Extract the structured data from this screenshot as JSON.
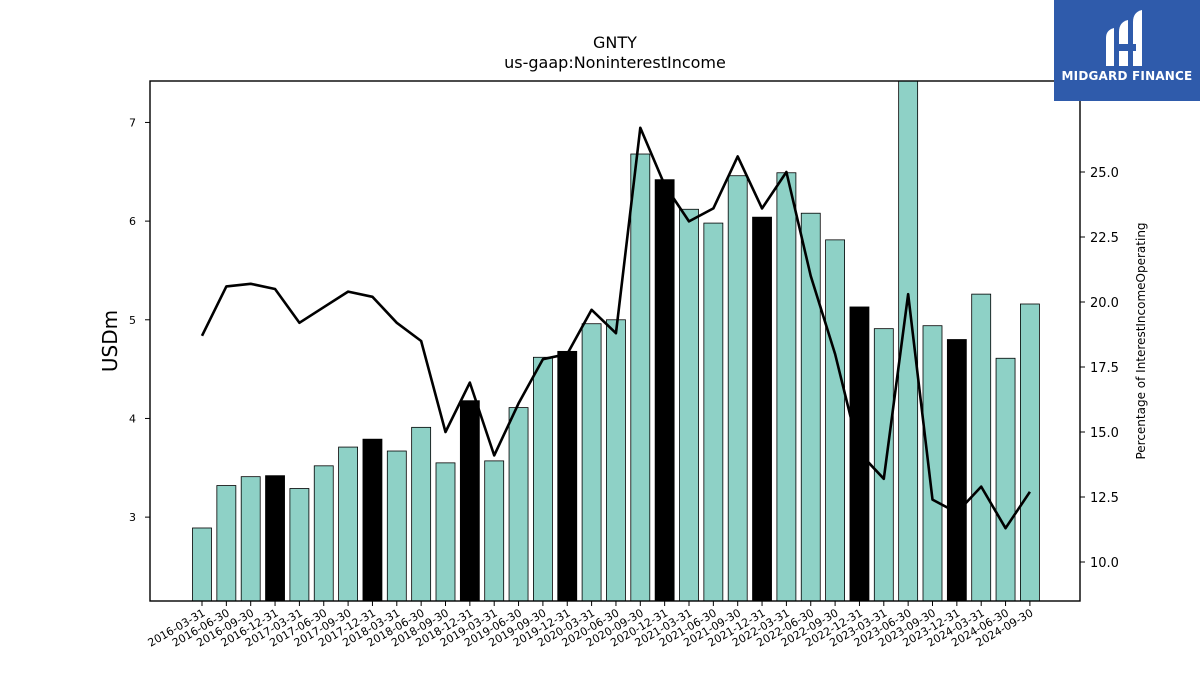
{
  "title": "GNTY",
  "subtitle": "us-gaap:NoninterestIncome",
  "logo": {
    "text": "MIDGARD FINANCE",
    "icon": "midgard-logo-icon",
    "background": "#2f5bab"
  },
  "chart_data": {
    "type": "bar",
    "categories": [
      "2016-03-31",
      "2016-06-30",
      "2016-09-30",
      "2016-12-31",
      "2017-03-31",
      "2017-06-30",
      "2017-09-30",
      "2017-12-31",
      "2018-03-31",
      "2018-06-30",
      "2018-09-30",
      "2018-12-31",
      "2019-03-31",
      "2019-06-30",
      "2019-09-30",
      "2019-12-31",
      "2020-03-31",
      "2020-06-30",
      "2020-09-30",
      "2020-12-31",
      "2021-03-31",
      "2021-06-30",
      "2021-09-30",
      "2021-12-31",
      "2022-03-31",
      "2022-06-30",
      "2022-09-30",
      "2022-12-31",
      "2023-03-31",
      "2023-06-30",
      "2023-09-30",
      "2023-12-31",
      "2024-03-31",
      "2024-06-30",
      "2024-09-30"
    ],
    "series": [
      {
        "axis": "left",
        "values": [
          2.89,
          3.32,
          3.41,
          3.42,
          3.29,
          3.52,
          3.71,
          3.79,
          3.67,
          3.91,
          3.55,
          4.18,
          3.57,
          4.11,
          4.62,
          4.68,
          4.96,
          5.0,
          6.68,
          6.42,
          6.12,
          5.98,
          6.46,
          6.04,
          6.49,
          6.08,
          5.81,
          5.13,
          4.91,
          7.42,
          4.94,
          4.8,
          5.26,
          4.61,
          5.16
        ],
        "highlight": [
          false,
          false,
          false,
          true,
          false,
          false,
          false,
          true,
          false,
          false,
          false,
          true,
          false,
          false,
          false,
          true,
          false,
          false,
          false,
          true,
          false,
          false,
          false,
          true,
          false,
          false,
          false,
          true,
          false,
          false,
          false,
          true,
          false,
          false,
          false
        ],
        "color": "#8ed1c6",
        "highlight_color": "#000000"
      },
      {
        "type": "line",
        "axis": "right",
        "values": [
          18.7,
          20.6,
          20.7,
          20.5,
          19.2,
          19.8,
          20.4,
          20.2,
          19.2,
          18.5,
          15.0,
          16.9,
          14.1,
          16.1,
          17.8,
          18.0,
          19.7,
          18.8,
          26.7,
          24.5,
          23.1,
          23.6,
          25.6,
          23.6,
          25.0,
          21.0,
          18.0,
          14.2,
          13.2,
          20.3,
          12.4,
          11.9,
          12.9,
          11.3,
          12.7
        ],
        "color": "#000000"
      }
    ],
    "ylabel": "USDm",
    "ylabel_right": "Percentage of InterestIncomeOperating",
    "ylim": [
      2.15,
      7.42
    ],
    "ylim_right": [
      8.5,
      28.5
    ],
    "yticks": [
      3,
      4,
      5,
      6,
      7
    ],
    "yticks_right": [
      "10.0",
      "12.5",
      "15.0",
      "17.5",
      "20.0",
      "22.5",
      "25.0"
    ],
    "grid": false
  }
}
